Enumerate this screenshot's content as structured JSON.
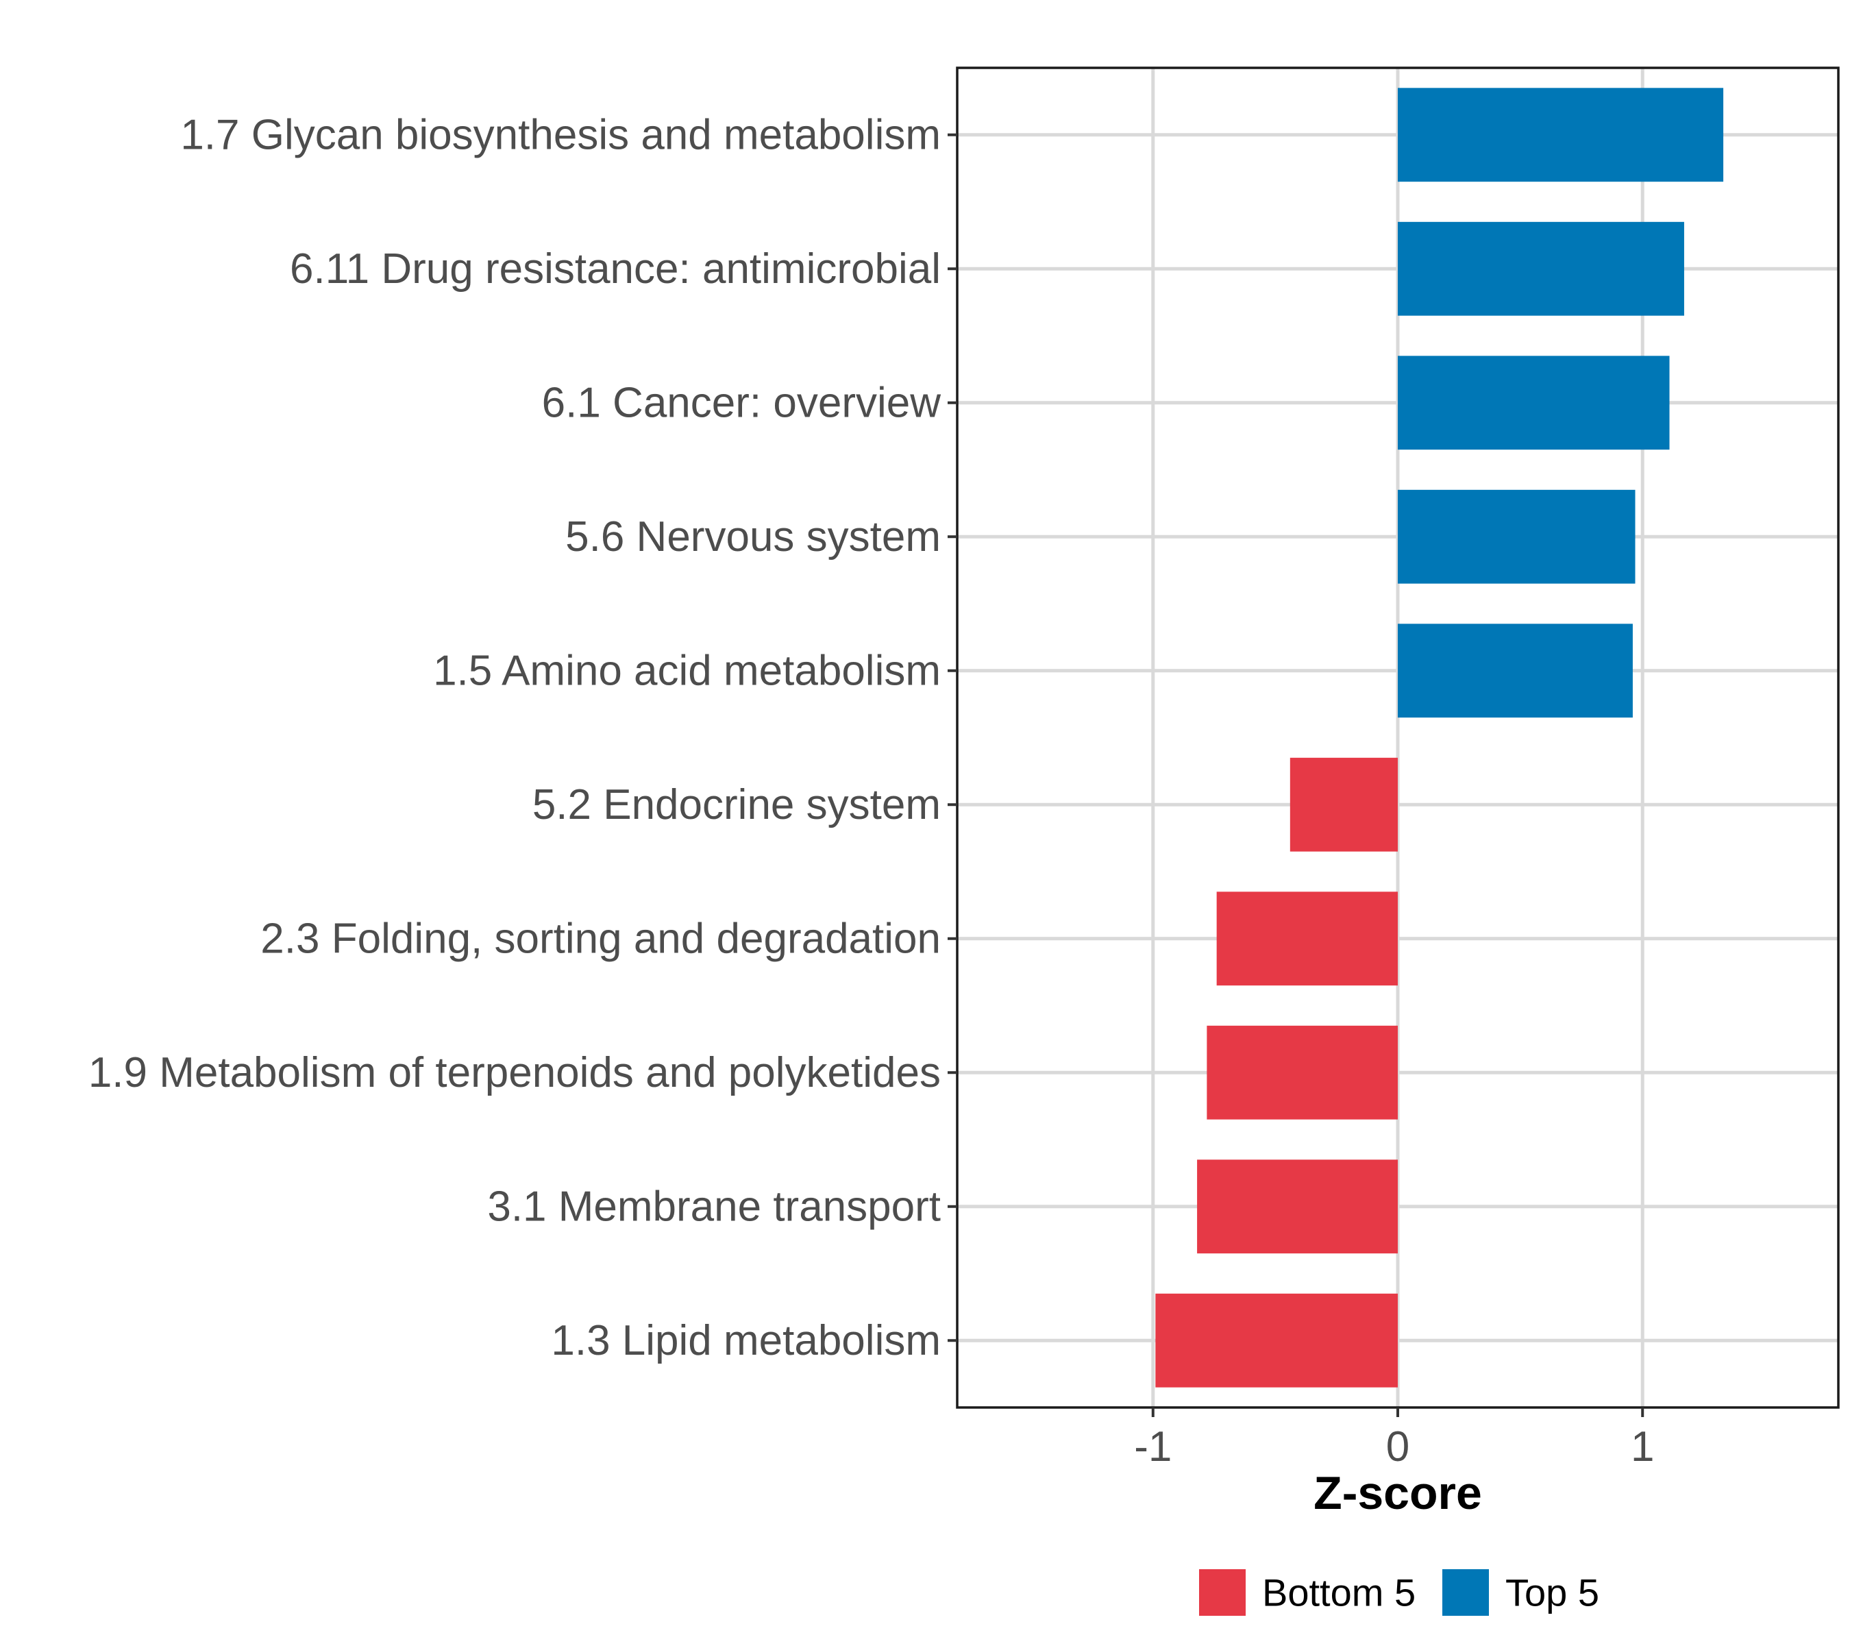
{
  "chart_data": {
    "type": "bar",
    "orientation": "horizontal",
    "title": "",
    "xlabel": "Z-score",
    "ylabel": "",
    "xlim": [
      -1.8,
      1.8
    ],
    "xticks": [
      -1,
      0,
      1
    ],
    "xtick_labels": [
      "-1",
      "0",
      "1"
    ],
    "grid": true,
    "legend_position": "bottom",
    "categories": [
      "1.7 Glycan biosynthesis and metabolism",
      "6.11 Drug resistance: antimicrobial",
      "6.1 Cancer: overview",
      "5.6 Nervous system",
      "1.5 Amino acid metabolism",
      "5.2 Endocrine system",
      "2.3 Folding, sorting and degradation",
      "1.9 Metabolism of terpenoids and polyketides",
      "3.1 Membrane transport",
      "1.3 Lipid metabolism"
    ],
    "values": [
      1.33,
      1.17,
      1.11,
      0.97,
      0.96,
      -0.44,
      -0.74,
      -0.78,
      -0.82,
      -0.99
    ],
    "groups": [
      "Top 5",
      "Top 5",
      "Top 5",
      "Top 5",
      "Top 5",
      "Bottom 5",
      "Bottom 5",
      "Bottom 5",
      "Bottom 5",
      "Bottom 5"
    ],
    "legend": [
      {
        "name": "Bottom 5",
        "color": "#e63946"
      },
      {
        "name": "Top 5",
        "color": "#0077b6"
      }
    ]
  }
}
